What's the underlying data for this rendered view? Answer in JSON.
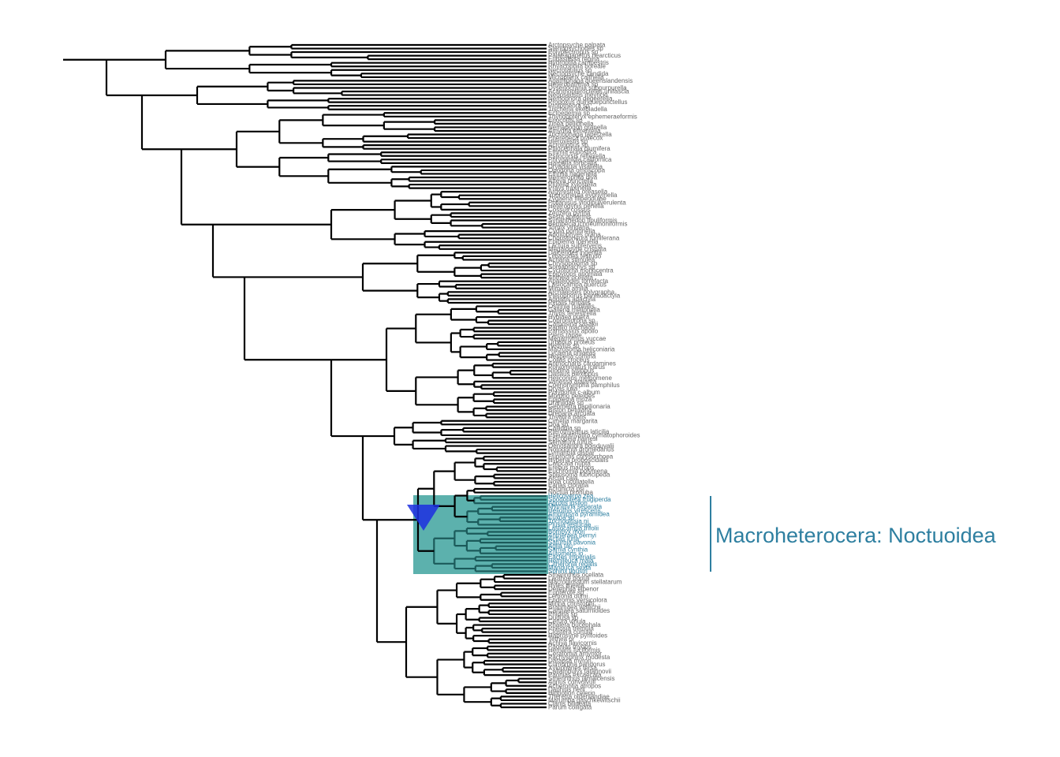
{
  "figure": {
    "type": "phylogenetic-tree",
    "clade_label": "Macroheterocera: Noctuoidea",
    "highlight_color": "#4aa9a4",
    "label_color": "#2e7fa0",
    "tip_color": "#666666",
    "branch_color": "#000000",
    "marker_color": "#1c2fe0"
  },
  "tips": [
    "Arctopsyche palpata",
    "Stenopsychodes sp",
    "Polyplectropus sp",
    "Palaeagapetus nearcticus",
    "Eubasilissa regina",
    "Hydroptila campestris",
    "Rhyacophila boreale",
    "Necrotaulius sp",
    "Nectopsyche candida",
    "Micropterix calthella",
    "Agathiphaga queenslandensis",
    "Heterobathmia sp",
    "Dyseriocrania subpurpurella",
    "Acanthopteroctetes unifascia",
    "Neopseustis meyricki",
    "Nemophora degeerella",
    "Prodoxus quinquepunctellus",
    "Prototheora sp",
    "Tischeria ekebladella",
    "Ectoedemia sp",
    "Thyridopteryx ephemeraeformis",
    "Eriocottis sp",
    "Tinea pellionella",
    "Nemapogon granella",
    "Amydria effrentella",
    "Trichophaga tapetzella",
    "Phereoeca praecox",
    "Hieroxestis sp",
    "Acrolophus sp",
    "Ptilocephala plumifera",
    "Ethmia eupostica",
    "Psilocorsis reflexella",
    "Phryganidia californica",
    "Harpella forficella",
    "Dryadaula visaliella",
    "Opogona omoscopa",
    "Ethmia hagenella",
    "Hemerophila diva",
    "Atteva punctella",
    "Plutella xylostella",
    "Prays fraxinella",
    "Argyresthia oreasella",
    "Yponomeuta evonymella",
    "Zygaena filipendulae",
    "Pollanisus viridipulverulenta",
    "Heterogynis penella",
    "Cossus cossus",
    "Zeuzera pyrina",
    "Sesia apiformis",
    "Synanthedon tipuliformis",
    "Bembecia ichneumoniformis",
    "Tortrix viridana",
    "Cydia pomonella",
    "Adoxophyes orana",
    "Choristoneura fumiferana",
    "Epiblema foenella",
    "Lactura subfervens",
    "Megalopyge crispata",
    "Dalcerides ingenita",
    "Limacodes testudo",
    "Acharia stimulea",
    "Chrysopoloma sp",
    "Somabrachys sp",
    "Cyclotorna monocentra",
    "Epipyrops anomala",
    "Anthela ocellata",
    "Apatelodes torrefacta",
    "Lasiocampa quercus",
    "Mimallo amilia",
    "Archaeoses polygrapha",
    "Pterophorus pentadactyla",
    "Agdistis adactyla",
    "Pyralis farinalis",
    "Ostrinia nubilalis",
    "Galleria mellonella",
    "Thyris fenestrella",
    "Hyblaea puera",
    "Copromorpha sp",
    "Carposina sasakii",
    "Papilio machaon",
    "Parnassius apollo",
    "Pieris rapae",
    "Megathymus yuccae",
    "Urbanus proteus",
    "Hedylus sp",
    "Macrosoma heliconiaria",
    "Lycaena phlaeas",
    "Hesperia comma",
    "Colias croceus",
    "Anthocharis cardamines",
    "Polyommatus icarus",
    "Riodina lysippus",
    "Danaus plexippus",
    "Heliconius melpomene",
    "Vanessa atalanta",
    "Coenonympha pamphilus",
    "Dryas iulia",
    "Polygonia c-album",
    "Morpho peleides",
    "Epiplema moza",
    "Uraniidae sp",
    "Geometra papilionaria",
    "Biston betularia",
    "Drepana arcuata",
    "Thyatira batis",
    "Cimelia margarita",
    "Doa sp",
    "Callidula sp",
    "Pterothysanus laticilia",
    "Pseudothyatira cymatophoroides",
    "Epicopeia hainesi",
    "Sematura lunus",
    "Oenosandra boisduvalii",
    "Notodonta dromedarius",
    "Lymantria dispar",
    "Euproctis chrysorrhoea",
    "Hypena proboscidalis",
    "Catocala nupta",
    "Erebus macrops",
    "Euchromia polymena",
    "Spilosoma lubricipeda",
    "Arctia caja",
    "Nola cucullatella",
    "Earias clorana",
    "Acronicta psi",
    "Noctua pronuba",
    "Helicoverpa zea",
    "Spodoptera frugiperda",
    "Agrotis ipsilon",
    "Mythimna separata",
    "Heliothis virescens",
    "Amphipyra pyramidea",
    "Euxoa sp",
    "Trichoplusia ni",
    "Plusia festucae",
    "Lasiocampa trifolii",
    "Bombyx mori",
    "Antheraea pernyi",
    "Actias luna",
    "Saturnia pavonia",
    "Aglia tau",
    "Samia cynthia",
    "Automeris io",
    "Eacles imperialis",
    "Hemileuca maia",
    "Citheronia regalis",
    "Manduca sexta",
    "Sphinx ligustri",
    "Smerinthus ocellata",
    "Laothoe populi",
    "Macroglossum stellatarum",
    "Hyles lineata",
    "Deilephila elpenor",
    "Eupterote sp",
    "Lemonia dumi",
    "Endromis versicolora",
    "Mirina christophi",
    "Brahmaea wallichii",
    "Carthaea saturnioides",
    "Phiditia sp",
    "Dudusa sp",
    "Cerura vinula",
    "Phalera bucephala",
    "Pheosia tremula",
    "Clostera curtula",
    "Habrosyne pyritoides",
    "Tethea or",
    "Achlya flavicornis",
    "Paonias myops",
    "Hemaris fuciformis",
    "Ceratomia amyntor",
    "Pachysphinx modesta",
    "Darapsa myron",
    "Eumorpha pandorus",
    "Xylophanes tersa",
    "Callambulyx tatarinovii",
    "Paonias excaecata",
    "Smerinthus jamaicensis",
    "Agrius convolvuli",
    "Acherontia atropos",
    "Daphnis nerii",
    "Hippotion celerio",
    "Theretra oldenlandiae",
    "Marumba gaschkewitschii",
    "Clanis bilineata",
    "Parum colligata"
  ]
}
